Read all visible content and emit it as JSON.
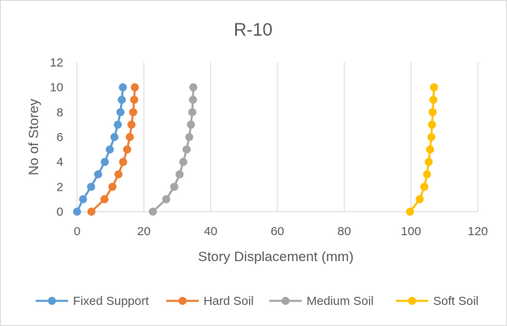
{
  "chart_data": {
    "type": "line",
    "title": "R-10",
    "xlabel": "Story Displacement (mm)",
    "ylabel": "No of Storey",
    "xlim": [
      0,
      120
    ],
    "ylim": [
      0,
      12
    ],
    "xticks": [
      0,
      20,
      40,
      60,
      80,
      100,
      120
    ],
    "yticks": [
      0,
      2,
      4,
      6,
      8,
      10,
      12
    ],
    "grid": "vertical",
    "legend_position": "bottom",
    "series": [
      {
        "name": "Fixed Support",
        "color": "#5B9BD5",
        "x": [
          0,
          1.8,
          4.2,
          6.3,
          8.3,
          9.8,
          11.2,
          12.2,
          13.0,
          13.4,
          13.7
        ],
        "y": [
          0,
          1,
          2,
          3,
          4,
          5,
          6,
          7,
          8,
          9,
          10
        ]
      },
      {
        "name": "Hard Soil",
        "color": "#ED7D31",
        "x": [
          4.3,
          8.2,
          10.6,
          12.4,
          13.8,
          15.0,
          15.8,
          16.3,
          16.8,
          17.1,
          17.3
        ],
        "y": [
          0,
          1,
          2,
          3,
          4,
          5,
          6,
          7,
          8,
          9,
          10
        ]
      },
      {
        "name": "Medium Soil",
        "color": "#A5A5A5",
        "x": [
          22.7,
          26.7,
          29.1,
          30.7,
          31.8,
          32.8,
          33.6,
          34.1,
          34.5,
          34.7,
          34.8
        ],
        "y": [
          0,
          1,
          2,
          3,
          4,
          5,
          6,
          7,
          8,
          9,
          10
        ]
      },
      {
        "name": "Soft Soil",
        "color": "#FFC000",
        "x": [
          99.7,
          102.6,
          104.0,
          104.8,
          105.3,
          105.7,
          106.1,
          106.3,
          106.5,
          106.7,
          106.9
        ],
        "y": [
          0,
          1,
          2,
          3,
          4,
          5,
          6,
          7,
          8,
          9,
          10
        ]
      }
    ]
  }
}
